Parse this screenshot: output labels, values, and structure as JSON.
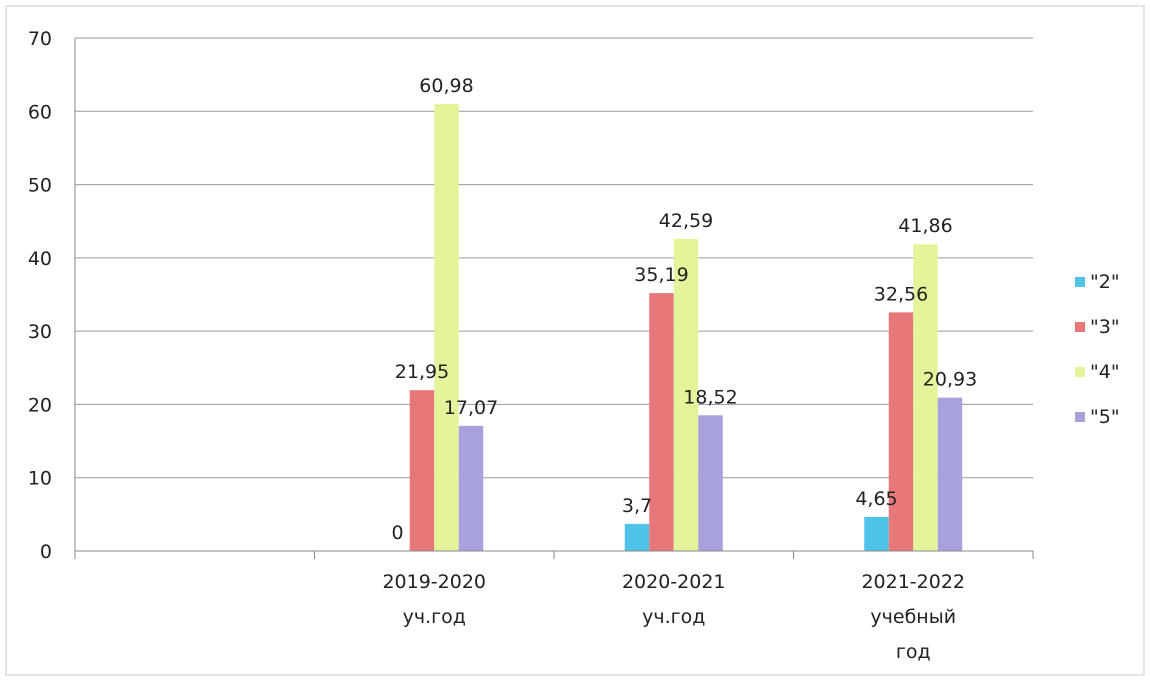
{
  "chart_data": {
    "type": "bar",
    "categories": [
      [
        "2019-2020",
        "уч.год"
      ],
      [
        "2020-2021",
        "уч.год"
      ],
      [
        "2021-2022",
        "учебный",
        "год"
      ]
    ],
    "series": [
      {
        "name": "\"2\"",
        "color": "#4fc3e8",
        "values": [
          0,
          3.7,
          4.65
        ],
        "labels": [
          "0",
          "3,7",
          "4,65"
        ]
      },
      {
        "name": "\"3\"",
        "color": "#e8777a",
        "values": [
          21.95,
          35.19,
          32.56
        ],
        "labels": [
          "21,95",
          "35,19",
          "32,56"
        ]
      },
      {
        "name": "\"4\"",
        "color": "#e4f49a",
        "values": [
          60.98,
          42.59,
          41.86
        ],
        "labels": [
          "60,98",
          "42,59",
          "41,86"
        ]
      },
      {
        "name": "\"5\"",
        "color": "#a7a1de",
        "values": [
          17.07,
          18.52,
          20.93
        ],
        "labels": [
          "17,07",
          "18,52",
          "20,93"
        ]
      }
    ],
    "yticks": [
      "0",
      "10",
      "20",
      "30",
      "40",
      "50",
      "60",
      "70"
    ],
    "ylim": [
      0,
      70
    ],
    "grid": true,
    "legend": "right"
  }
}
